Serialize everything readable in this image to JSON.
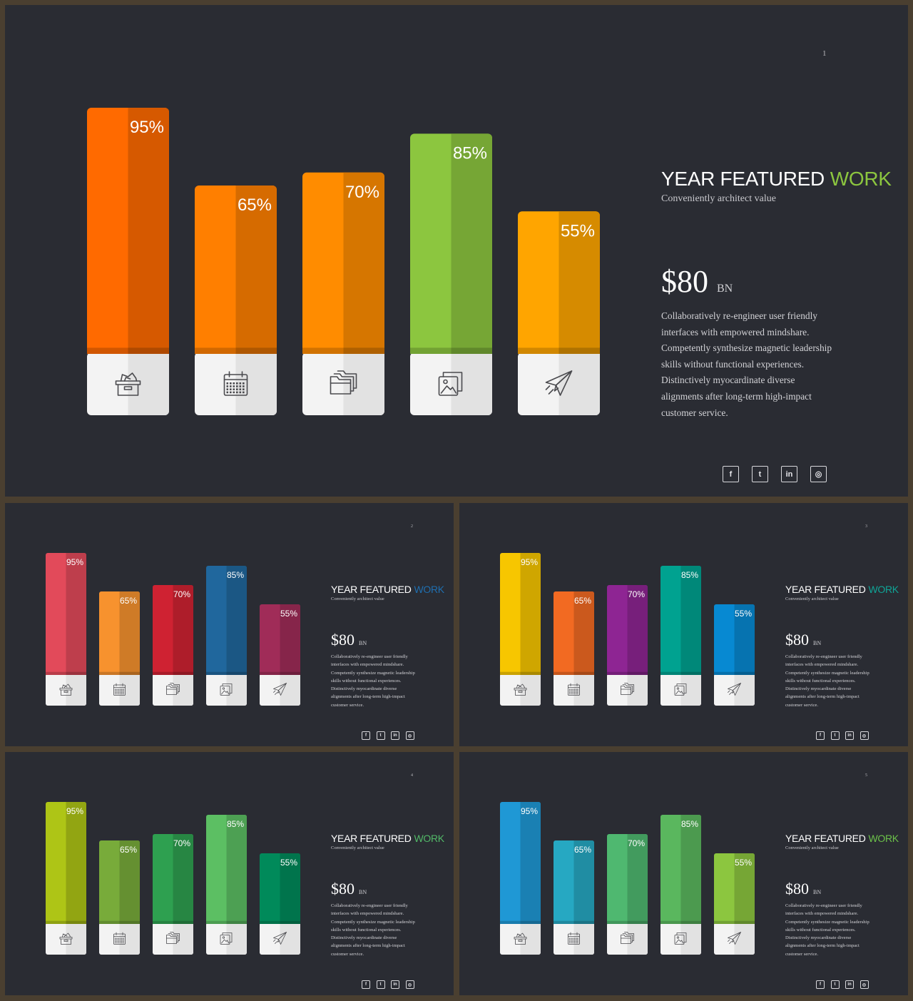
{
  "colors": {
    "background": "#2a2c33",
    "frame": "#4a3f30"
  },
  "icons": [
    "archive-box-icon",
    "calendar-icon",
    "folder-icon",
    "images-icon",
    "paper-plane-icon"
  ],
  "social": [
    "facebook-icon",
    "twitter-icon",
    "linkedin-icon",
    "instagram-icon"
  ],
  "social_glyphs": [
    "f",
    "t",
    "in",
    "◎"
  ],
  "slides": [
    {
      "page": "1",
      "title_main": "YEAR FEATURED",
      "title_accent": "WORK",
      "accent_color": "#8cc63f",
      "subtitle": "Conveniently architect value",
      "amount": "$80",
      "amount_unit": "BN",
      "description": "Collaboratively re-engineer user friendly interfaces with empowered mindshare. Competently synthesize magnetic leadership skills without functional experiences. Distinctively myocardinate diverse alignments after long-term high-impact customer service.",
      "bar_colors": [
        "#ff6a00",
        "#ff7f00",
        "#ff8c00",
        "#8cc63f",
        "#ffa500"
      ]
    },
    {
      "page": "2",
      "title_main": "YEAR FEATURED",
      "title_accent": "WORK",
      "accent_color": "#1f6fb0",
      "subtitle": "Conveniently architect value",
      "amount": "$80",
      "amount_unit": "BN",
      "description": "Collaboratively re-engineer user friendly interfaces with empowered mindshare. Competently synthesize magnetic leadership skills without functional experiences. Distinctively myocardinate diverse alignments after long-term high-impact customer service.",
      "bar_colors": [
        "#e24a5a",
        "#f7922e",
        "#cf2232",
        "#20679d",
        "#a02c58"
      ]
    },
    {
      "page": "3",
      "title_main": "YEAR FEATURED",
      "title_accent": "WORK",
      "accent_color": "#0fa597",
      "subtitle": "Conveniently architect value",
      "amount": "$80",
      "amount_unit": "BN",
      "description": "Collaboratively re-engineer user friendly interfaces with empowered mindshare. Competently synthesize magnetic leadership skills without functional experiences. Distinctively myocardinate diverse alignments after long-term high-impact customer service.",
      "bar_colors": [
        "#f7c600",
        "#f26a22",
        "#8e2593",
        "#00a290",
        "#0789d2"
      ]
    },
    {
      "page": "4",
      "title_main": "YEAR FEATURED",
      "title_accent": "WORK",
      "accent_color": "#52b968",
      "subtitle": "Conveniently architect value",
      "amount": "$80",
      "amount_unit": "BN",
      "description": "Collaboratively re-engineer user friendly interfaces with empowered mindshare. Competently synthesize magnetic leadership skills without functional experiences. Distinctively myocardinate diverse alignments after long-term high-impact customer service.",
      "bar_colors": [
        "#aec516",
        "#78ab3a",
        "#2ea050",
        "#5cbf63",
        "#008a5a"
      ]
    },
    {
      "page": "5",
      "title_main": "YEAR FEATURED",
      "title_accent": "WORK",
      "accent_color": "#6cc24a",
      "subtitle": "Conveniently architect value",
      "amount": "$80",
      "amount_unit": "BN",
      "description": "Collaboratively re-engineer user friendly interfaces with empowered mindshare. Competently synthesize magnetic leadership skills without functional experiences. Distinctively myocardinate diverse alignments after long-term high-impact customer service.",
      "bar_colors": [
        "#1f98d5",
        "#26a8c2",
        "#4fb870",
        "#5ab75e",
        "#8cc63f"
      ]
    }
  ],
  "chart_data": [
    {
      "type": "bar",
      "categories": [
        "",
        "",
        "",
        "",
        ""
      ],
      "values": [
        95,
        65,
        70,
        85,
        55
      ],
      "labels": [
        "95%",
        "65%",
        "70%",
        "85%",
        "55%"
      ],
      "ylim": [
        0,
        100
      ],
      "grid": false
    },
    {
      "type": "bar",
      "categories": [
        "",
        "",
        "",
        "",
        ""
      ],
      "values": [
        95,
        65,
        70,
        85,
        55
      ],
      "labels": [
        "95%",
        "65%",
        "70%",
        "85%",
        "55%"
      ],
      "ylim": [
        0,
        100
      ],
      "grid": false
    },
    {
      "type": "bar",
      "categories": [
        "",
        "",
        "",
        "",
        ""
      ],
      "values": [
        95,
        65,
        70,
        85,
        55
      ],
      "labels": [
        "95%",
        "65%",
        "70%",
        "85%",
        "55%"
      ],
      "ylim": [
        0,
        100
      ],
      "grid": false
    },
    {
      "type": "bar",
      "categories": [
        "",
        "",
        "",
        "",
        ""
      ],
      "values": [
        95,
        65,
        70,
        85,
        55
      ],
      "labels": [
        "95%",
        "65%",
        "70%",
        "85%",
        "55%"
      ],
      "ylim": [
        0,
        100
      ],
      "grid": false
    },
    {
      "type": "bar",
      "categories": [
        "",
        "",
        "",
        "",
        ""
      ],
      "values": [
        95,
        65,
        70,
        85,
        55
      ],
      "labels": [
        "95%",
        "65%",
        "70%",
        "85%",
        "55%"
      ],
      "ylim": [
        0,
        100
      ],
      "grid": false
    }
  ]
}
